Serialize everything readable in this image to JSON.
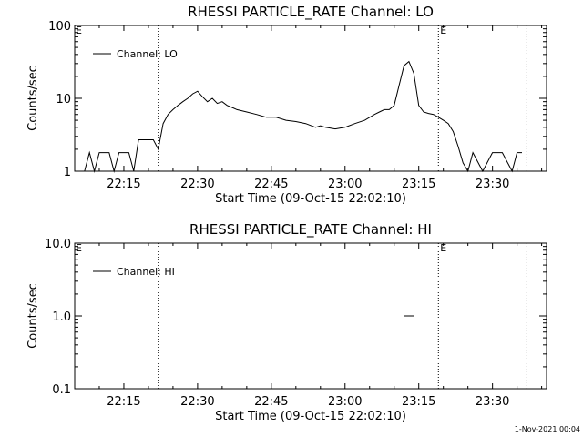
{
  "footer": {
    "timestamp": "1-Nov-2021 00:04"
  },
  "chart_data": [
    {
      "type": "line",
      "title": "RHESSI PARTICLE_RATE Channel: LO",
      "xlabel": "Start Time (09-Oct-15 22:02:10)",
      "ylabel": "Counts/sec",
      "yscale": "log",
      "ylim": [
        1,
        100
      ],
      "xlim": [
        "22:05:00",
        "23:41:00"
      ],
      "x_ticks": [
        "22:15",
        "22:30",
        "22:45",
        "23:00",
        "23:15",
        "23:30"
      ],
      "y_ticks": [
        "1",
        "10",
        "100"
      ],
      "legend": {
        "position": "top-left",
        "entries": [
          "Channel: LO"
        ]
      },
      "markers": [
        {
          "time": "22:22:00",
          "label": ""
        },
        {
          "time": "23:19:00",
          "label": "E"
        },
        {
          "time": "23:37:00",
          "label": ""
        }
      ],
      "edge_label": "E",
      "series": [
        {
          "name": "Channel: LO",
          "x": [
            "22:07:00",
            "22:08:00",
            "22:09:00",
            "22:10:00",
            "22:11:00",
            "22:12:00",
            "22:13:00",
            "22:14:00",
            "22:15:00",
            "22:16:00",
            "22:17:00",
            "22:18:00",
            "22:19:00",
            "22:20:00",
            "22:21:00",
            "22:22:00",
            "22:23:00",
            "22:24:00",
            "22:25:00",
            "22:26:00",
            "22:27:00",
            "22:28:00",
            "22:29:00",
            "22:30:00",
            "22:31:00",
            "22:32:00",
            "22:33:00",
            "22:34:00",
            "22:35:00",
            "22:36:00",
            "22:37:00",
            "22:38:00",
            "22:40:00",
            "22:42:00",
            "22:44:00",
            "22:46:00",
            "22:48:00",
            "22:50:00",
            "22:52:00",
            "22:54:00",
            "22:55:00",
            "22:56:00",
            "22:58:00",
            "23:00:00",
            "23:02:00",
            "23:04:00",
            "23:06:00",
            "23:07:00",
            "23:08:00",
            "23:09:00",
            "23:10:00",
            "23:11:00",
            "23:12:00",
            "23:13:00",
            "23:14:00",
            "23:15:00",
            "23:16:00",
            "23:17:00",
            "23:18:00",
            "23:19:00",
            "23:20:00",
            "23:21:00",
            "23:22:00",
            "23:23:00",
            "23:24:00",
            "23:25:00",
            "23:26:00",
            "23:28:00",
            "23:30:00",
            "23:32:00",
            "23:34:00",
            "23:35:00",
            "23:36:00"
          ],
          "y": [
            1.0,
            1.8,
            1.0,
            1.8,
            1.8,
            1.8,
            1.0,
            1.8,
            1.8,
            1.8,
            1.0,
            2.7,
            2.7,
            2.7,
            2.7,
            2.0,
            4.5,
            6.0,
            7.0,
            8.0,
            9.0,
            10.0,
            11.5,
            12.5,
            10.5,
            9.0,
            10.0,
            8.5,
            9.0,
            8.0,
            7.5,
            7.0,
            6.5,
            6.0,
            5.5,
            5.5,
            5.0,
            4.8,
            4.5,
            4.0,
            4.2,
            4.0,
            3.8,
            4.0,
            4.5,
            5.0,
            6.0,
            6.5,
            7.0,
            7.0,
            8.0,
            15.0,
            28.0,
            32.0,
            22.0,
            8.0,
            6.5,
            6.2,
            6.0,
            5.5,
            5.0,
            4.5,
            3.5,
            2.2,
            1.3,
            1.0,
            1.8,
            1.0,
            1.8,
            1.8,
            1.0,
            1.8,
            1.8
          ]
        }
      ]
    },
    {
      "type": "line",
      "title": "RHESSI PARTICLE_RATE Channel: HI",
      "xlabel": "Start Time (09-Oct-15 22:02:10)",
      "ylabel": "Counts/sec",
      "yscale": "log",
      "ylim": [
        0.1,
        10
      ],
      "xlim": [
        "22:05:00",
        "23:41:00"
      ],
      "x_ticks": [
        "22:15",
        "22:30",
        "22:45",
        "23:00",
        "23:15",
        "23:30"
      ],
      "y_ticks": [
        "0.1",
        "1.0",
        "10.0"
      ],
      "legend": {
        "position": "top-left",
        "entries": [
          "Channel: HI"
        ]
      },
      "markers": [
        {
          "time": "22:22:00",
          "label": ""
        },
        {
          "time": "23:19:00",
          "label": "E"
        },
        {
          "time": "23:37:00",
          "label": ""
        }
      ],
      "edge_label": "E",
      "series": [
        {
          "name": "Channel: HI",
          "x": [
            "23:12:00",
            "23:14:00"
          ],
          "y": [
            1.0,
            1.0
          ]
        }
      ]
    }
  ]
}
